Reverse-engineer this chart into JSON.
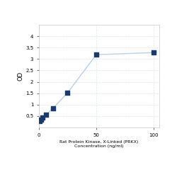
{
  "x": [
    0.78,
    1.56,
    3.13,
    6.25,
    12.5,
    25,
    50,
    100
  ],
  "y": [
    0.28,
    0.33,
    0.42,
    0.56,
    0.85,
    1.52,
    3.19,
    3.28
  ],
  "line_color": "#b8d0e8",
  "marker_color": "#1a3a6e",
  "marker_size": 4,
  "xlabel_line1": "Rat Protein Kinase, X-Linked (PRKX)",
  "xlabel_line2": "Concentration (ng/ml)",
  "ylabel": "OD",
  "xlim": [
    0,
    105
  ],
  "ylim": [
    0,
    4.5
  ],
  "yticks": [
    0.5,
    1.0,
    1.5,
    2.0,
    2.5,
    3.0,
    3.5,
    4.0
  ],
  "xticks": [
    0,
    50,
    100
  ],
  "grid_color": "#dce6f0",
  "background_color": "#ffffff"
}
